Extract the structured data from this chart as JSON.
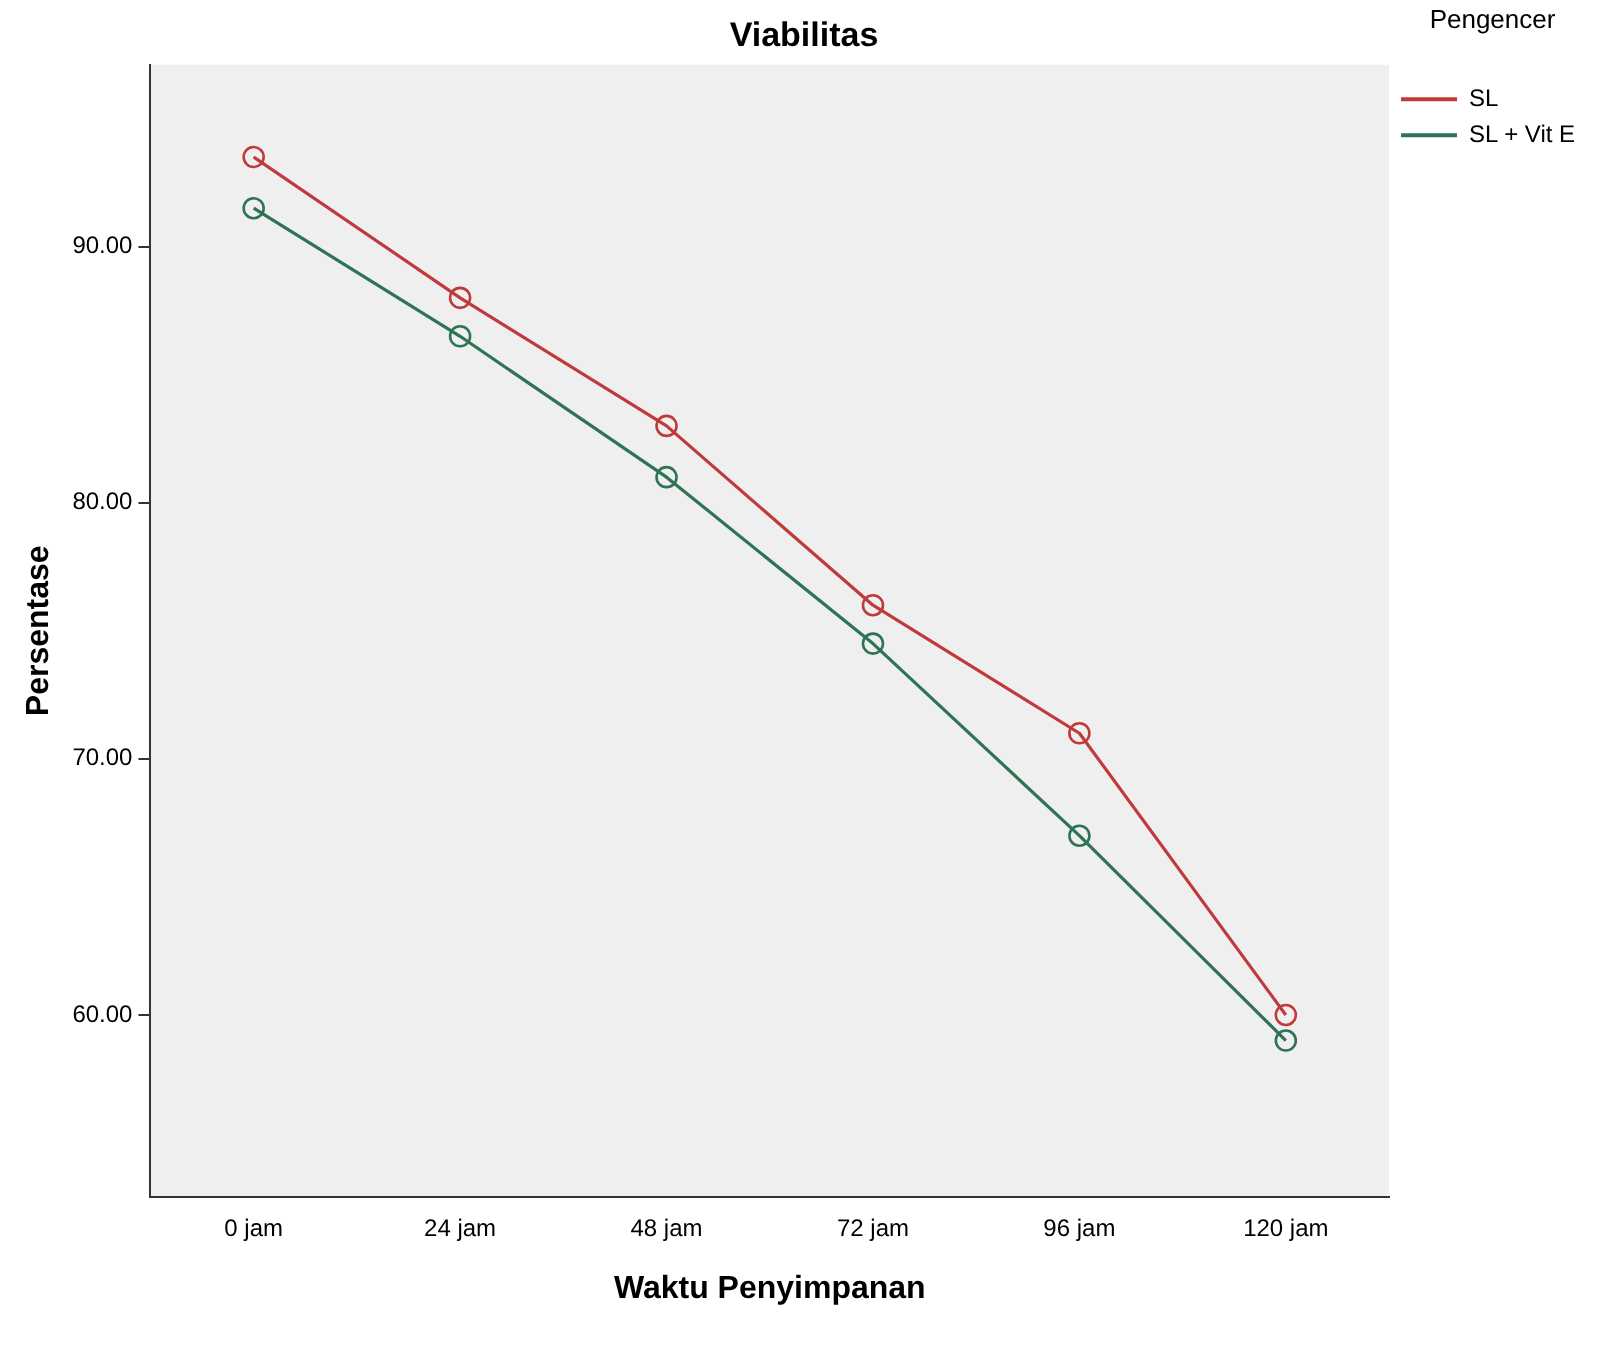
{
  "chart_data": {
    "type": "line",
    "title": "Viabilitas",
    "xlabel": "Waktu Penyimpanan",
    "ylabel": "Persentase",
    "legend_title": "Pengencer",
    "categories": [
      "0 jam",
      "24 jam",
      "48 jam",
      "72 jam",
      "96 jam",
      "120 jam"
    ],
    "series": [
      {
        "name": "SL",
        "color": "#c0393b",
        "values": [
          93.5,
          88,
          83,
          76,
          71,
          60
        ]
      },
      {
        "name": "SL + Vit E",
        "color": "#2e7354",
        "values": [
          91.5,
          86.5,
          81,
          74.5,
          67,
          59
        ]
      }
    ],
    "ylim": [
      52.9,
      97.1
    ],
    "yticks": [
      {
        "value": 60,
        "label": "60.00"
      },
      {
        "value": 70,
        "label": "70.00"
      },
      {
        "value": 80,
        "label": "80.00"
      },
      {
        "value": 90,
        "label": "90.00"
      }
    ],
    "grid": false,
    "legend": "right",
    "marker": "circle",
    "line_style": "solid"
  }
}
